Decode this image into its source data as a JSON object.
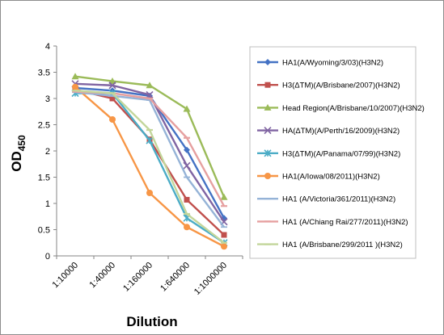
{
  "chart_data": {
    "type": "line",
    "title": "",
    "xlabel": "Dilution",
    "ylabel_main": "OD",
    "ylabel_sub": "450",
    "ylim": [
      0,
      4
    ],
    "y_ticks": [
      "0",
      "0.5",
      "1",
      "1.5",
      "2",
      "2.5",
      "3",
      "3.5",
      "4"
    ],
    "categories": [
      "1:10000",
      "1:40000",
      "1:160000",
      "1:640000",
      "1:1000000"
    ],
    "grid": false,
    "legend_position": "right",
    "series": [
      {
        "name": "HA1(A/Wyoming/3/03)(H3N2)",
        "color": "#4472c4",
        "marker": "diamond",
        "values": [
          3.2,
          3.15,
          3.05,
          2.02,
          0.72
        ]
      },
      {
        "name": "H3(ΔTM)(A/Brisbane/2007)(H3N2)",
        "color": "#c0504d",
        "marker": "square",
        "values": [
          3.17,
          3.0,
          2.22,
          1.07,
          0.4
        ]
      },
      {
        "name": "Head Region(A/Brisbane/10/2007)(H3N2)",
        "color": "#9bbb59",
        "marker": "triangle",
        "values": [
          3.42,
          3.33,
          3.25,
          2.8,
          1.12
        ]
      },
      {
        "name": "HA(ΔTM)(A/Perth/16/2009)(H3N2)",
        "color": "#8064a2",
        "marker": "x",
        "values": [
          3.28,
          3.25,
          3.07,
          1.72,
          0.65
        ]
      },
      {
        "name": "H3(ΔTM)(A/Panama/07/99)(H3N2)",
        "color": "#4bacc6",
        "marker": "star",
        "values": [
          3.1,
          3.1,
          2.2,
          0.72,
          0.25
        ]
      },
      {
        "name": "HA1(A/Iowa/08/2011)(H3N2)",
        "color": "#f79646",
        "marker": "circle",
        "values": [
          3.22,
          2.6,
          1.2,
          0.55,
          0.18
        ]
      },
      {
        "name": "HA1 (A/Victoria/361/2011)(H3N2)",
        "color": "#95b3d7",
        "marker": "plus",
        "values": [
          3.12,
          3.05,
          2.97,
          1.5,
          0.55
        ]
      },
      {
        "name": "HA1 (A/Chiang Rai/277/2011)(H3N2)",
        "color": "#e6a0a0",
        "marker": "dash",
        "values": [
          3.13,
          3.1,
          3.0,
          2.25,
          0.95
        ]
      },
      {
        "name": "HA1 (A/Brisbane/299/2011 )(H3N2)",
        "color": "#c3d69b",
        "marker": "dash",
        "values": [
          3.15,
          3.1,
          2.4,
          0.8,
          0.25
        ]
      }
    ]
  }
}
